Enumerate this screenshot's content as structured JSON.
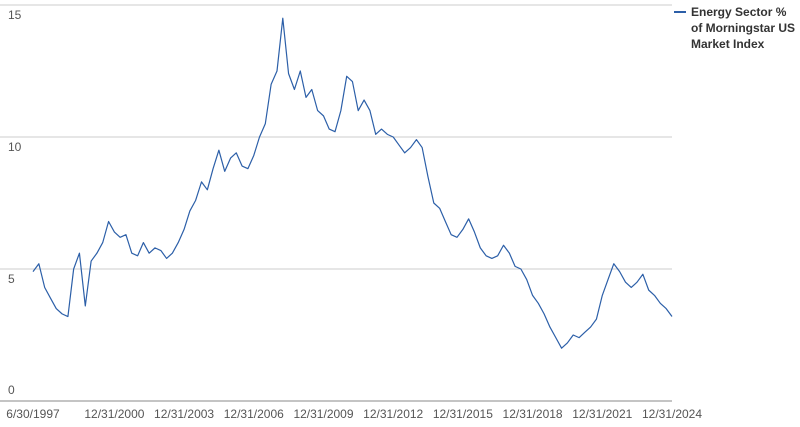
{
  "chart_data": {
    "type": "line",
    "x": [
      "6/30/1997",
      "9/30/1997",
      "12/31/1997",
      "3/31/1998",
      "6/30/1998",
      "9/30/1998",
      "12/31/1998",
      "3/31/1999",
      "6/30/1999",
      "9/30/1999",
      "12/31/1999",
      "3/31/2000",
      "6/30/2000",
      "9/30/2000",
      "12/31/2000",
      "3/31/2001",
      "6/30/2001",
      "9/30/2001",
      "12/31/2001",
      "3/31/2002",
      "6/30/2002",
      "9/30/2002",
      "12/31/2002",
      "3/31/2003",
      "6/30/2003",
      "9/30/2003",
      "12/31/2003",
      "3/31/2004",
      "6/30/2004",
      "9/30/2004",
      "12/31/2004",
      "3/31/2005",
      "6/30/2005",
      "9/30/2005",
      "12/31/2005",
      "3/31/2006",
      "6/30/2006",
      "9/30/2006",
      "12/31/2006",
      "3/31/2007",
      "6/30/2007",
      "9/30/2007",
      "12/31/2007",
      "3/31/2008",
      "6/30/2008",
      "9/30/2008",
      "12/31/2008",
      "3/31/2009",
      "6/30/2009",
      "9/30/2009",
      "12/31/2009",
      "3/31/2010",
      "6/30/2010",
      "9/30/2010",
      "12/31/2010",
      "3/31/2011",
      "6/30/2011",
      "9/30/2011",
      "12/31/2011",
      "3/31/2012",
      "6/30/2012",
      "9/30/2012",
      "12/31/2012",
      "3/31/2013",
      "6/30/2013",
      "9/30/2013",
      "12/31/2013",
      "3/31/2014",
      "6/30/2014",
      "9/30/2014",
      "12/31/2014",
      "3/31/2015",
      "6/30/2015",
      "9/30/2015",
      "12/31/2015",
      "3/31/2016",
      "6/30/2016",
      "9/30/2016",
      "12/31/2016",
      "3/31/2017",
      "6/30/2017",
      "9/30/2017",
      "12/31/2017",
      "3/31/2018",
      "6/30/2018",
      "9/30/2018",
      "12/31/2018",
      "3/31/2019",
      "6/30/2019",
      "9/30/2019",
      "12/31/2019",
      "3/31/2020",
      "6/30/2020",
      "9/30/2020",
      "12/31/2020",
      "3/31/2021",
      "6/30/2021",
      "9/30/2021",
      "12/31/2021",
      "3/31/2022",
      "6/30/2022",
      "9/30/2022",
      "12/31/2022",
      "3/31/2023",
      "6/30/2023",
      "9/30/2023",
      "12/31/2023",
      "3/31/2024",
      "6/30/2024",
      "9/30/2024",
      "12/31/2024"
    ],
    "series": [
      {
        "name": "Energy Sector % of Morningstar US Market Index",
        "color": "#2c5fa8",
        "values": [
          4.9,
          5.2,
          4.3,
          3.9,
          3.5,
          3.3,
          3.2,
          5.0,
          5.6,
          3.6,
          5.3,
          5.6,
          6.0,
          6.8,
          6.4,
          6.2,
          6.3,
          5.6,
          5.5,
          6.0,
          5.6,
          5.8,
          5.7,
          5.4,
          5.6,
          6.0,
          6.5,
          7.2,
          7.6,
          8.3,
          8.0,
          8.8,
          9.5,
          8.7,
          9.2,
          9.4,
          8.9,
          8.8,
          9.3,
          10.0,
          10.5,
          12.0,
          12.5,
          14.5,
          12.4,
          11.8,
          12.5,
          11.5,
          11.8,
          11.0,
          10.8,
          10.3,
          10.2,
          11.0,
          12.3,
          12.1,
          11.0,
          11.4,
          11.0,
          10.1,
          10.3,
          10.1,
          10.0,
          9.7,
          9.4,
          9.6,
          9.9,
          9.6,
          8.5,
          7.5,
          7.3,
          6.8,
          6.3,
          6.2,
          6.5,
          6.9,
          6.4,
          5.8,
          5.5,
          5.4,
          5.5,
          5.9,
          5.6,
          5.1,
          5.0,
          4.6,
          4.0,
          3.7,
          3.3,
          2.8,
          2.4,
          2.0,
          2.2,
          2.5,
          2.4,
          2.6,
          2.8,
          3.1,
          4.0,
          4.6,
          5.2,
          4.9,
          4.5,
          4.3,
          4.5,
          4.8,
          4.2,
          4.0,
          3.7,
          3.5,
          3.2
        ]
      }
    ],
    "xlim": [
      "6/30/1997",
      "12/31/2024"
    ],
    "xticks": [
      "6/30/1997",
      "12/31/2000",
      "12/31/2003",
      "12/31/2006",
      "12/31/2009",
      "12/31/2012",
      "12/31/2015",
      "12/31/2018",
      "12/31/2021",
      "12/31/2024"
    ],
    "ylim": [
      0,
      15
    ],
    "yticks": [
      0,
      5,
      10,
      15
    ],
    "grid": true,
    "legend": "top-right"
  }
}
